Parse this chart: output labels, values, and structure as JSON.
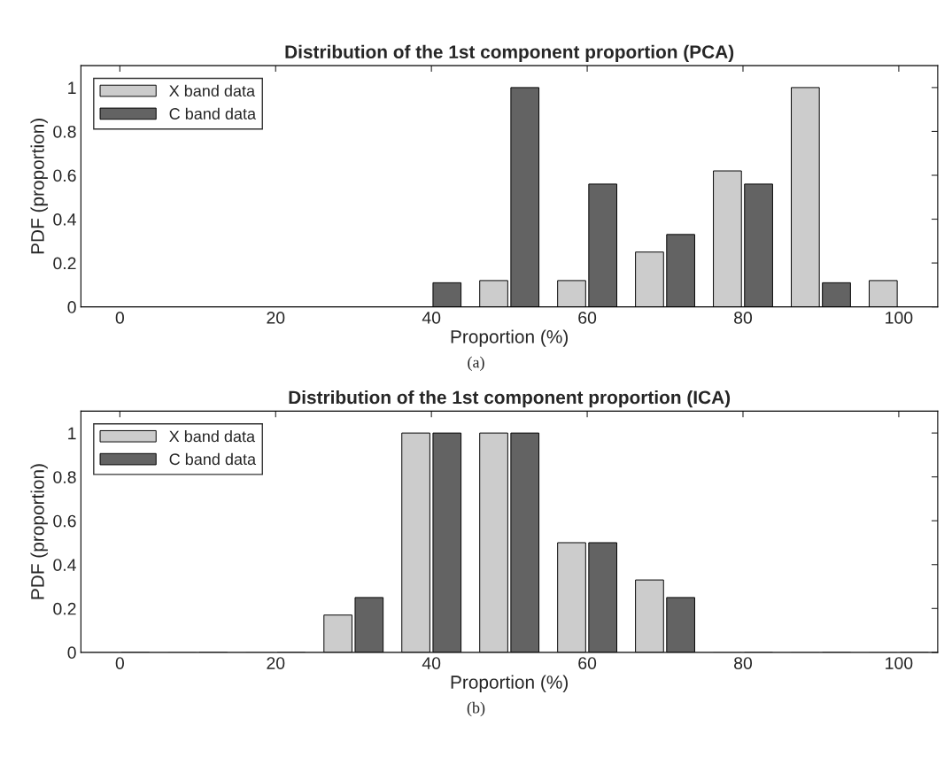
{
  "chart_data": [
    {
      "type": "bar",
      "title": "Distribution of the 1st component proportion (PCA)",
      "xlabel": "Proportion (%)",
      "ylabel": "PDF (proportion)",
      "x": [
        0,
        10,
        20,
        30,
        40,
        50,
        60,
        70,
        80,
        90,
        100
      ],
      "series": [
        {
          "name": "X band data",
          "color": "#cccccc",
          "values": [
            0,
            0,
            0,
            0,
            0,
            0.12,
            0.12,
            0.25,
            0.62,
            1,
            0.12
          ]
        },
        {
          "name": "C band data",
          "color": "#636363",
          "values": [
            0,
            0,
            0,
            0,
            0.11,
            1,
            0.56,
            0.33,
            0.56,
            0.11,
            0
          ]
        }
      ],
      "xlim": [
        -5,
        105
      ],
      "xticks": [
        0,
        20,
        40,
        60,
        80,
        100
      ],
      "ylim": [
        0,
        1.1
      ],
      "yticks": [
        0,
        0.2,
        0.4,
        0.6,
        0.8,
        1
      ],
      "legend": "top left",
      "grid": false,
      "annotations": [
        "(a)"
      ]
    },
    {
      "type": "bar",
      "title": "Distribution of the 1st component proportion (ICA)",
      "xlabel": "Proportion (%)",
      "ylabel": "PDF (proportion)",
      "x": [
        0,
        10,
        20,
        30,
        40,
        50,
        60,
        70,
        80,
        90,
        100
      ],
      "series": [
        {
          "name": "X band data",
          "color": "#cccccc",
          "values": [
            0,
            0,
            0,
            0.17,
            1,
            1,
            0.5,
            0.33,
            0,
            0,
            0
          ]
        },
        {
          "name": "C band data",
          "color": "#636363",
          "values": [
            0,
            0,
            0,
            0.25,
            1,
            1,
            0.5,
            0.25,
            0,
            0,
            0
          ]
        }
      ],
      "xlim": [
        -5,
        105
      ],
      "xticks": [
        0,
        20,
        40,
        60,
        80,
        100
      ],
      "ylim": [
        0,
        1.1
      ],
      "yticks": [
        0,
        0.2,
        0.4,
        0.6,
        0.8,
        1
      ],
      "legend": "top left",
      "grid": false,
      "annotations": [
        "(b)"
      ]
    }
  ]
}
